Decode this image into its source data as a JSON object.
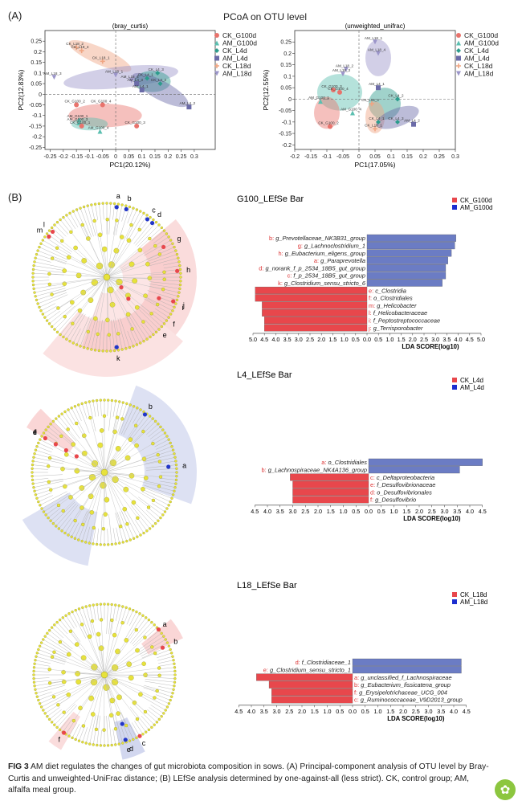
{
  "panel_a_label": "(A)",
  "panel_b_label": "(B)",
  "pcoa_title": "PCoA on OTU level",
  "colors": {
    "CK_G100d": "#e8736c",
    "AM_G100d": "#5bbfb0",
    "CK_L4d": "#2c9c8c",
    "AM_L4d": "#6b6ba8",
    "CK_L18d": "#f0a582",
    "AM_L18d": "#9b95c9",
    "red": "#e8474c",
    "blue": "#6b7cc4"
  },
  "chart_data": [
    {
      "type": "scatter",
      "title": "(bray_curtis)",
      "xlabel": "PC1(20.12%)",
      "ylabel": "PC2(12.83%)",
      "xlim": [
        -0.27,
        0.38
      ],
      "ylim": [
        -0.26,
        0.3
      ],
      "xticks": [
        "-0.25",
        "-0.2",
        "-0.15",
        "-0.1",
        "-0.05",
        "0",
        "0.05",
        "0.1",
        "0.15",
        "0.2",
        "0.25",
        "0.3"
      ],
      "yticks": [
        "0.25",
        "0.2",
        "0.15",
        "0.1",
        "0.05",
        "0",
        "-0.05",
        "-0.1",
        "-0.15",
        "-0.2",
        "-0.25"
      ],
      "legend": [
        "CK_G100d",
        "AM_G100d",
        "CK_L4d",
        "AM_L4d",
        "CK_L18d",
        "AM_L18d"
      ],
      "points": [
        {
          "label": "CK_L18_2",
          "x": -0.15,
          "y": 0.22,
          "group": "CK_L18d"
        },
        {
          "label": "CK_L18_4",
          "x": -0.13,
          "y": 0.205,
          "group": "CK_L18d"
        },
        {
          "label": "AM_L18_3",
          "x": -0.235,
          "y": 0.08,
          "group": "AM_L18d"
        },
        {
          "label": "AM_L18_1",
          "x": 0.0,
          "y": 0.09,
          "group": "AM_L18d"
        },
        {
          "label": "CK_L18_1",
          "x": -0.05,
          "y": 0.155,
          "group": "CK_L18d"
        },
        {
          "label": "AM_L18_4",
          "x": 0.06,
          "y": 0.065,
          "group": "AM_L18d"
        },
        {
          "label": "CK_L4_3",
          "x": 0.16,
          "y": 0.1,
          "group": "CK_L4d"
        },
        {
          "label": "CK_L4_1",
          "x": 0.12,
          "y": 0.075,
          "group": "CK_L4d"
        },
        {
          "label": "CK_L4_2",
          "x": 0.17,
          "y": 0.05,
          "group": "CK_L4d"
        },
        {
          "label": "AM_L4_3",
          "x": 0.08,
          "y": 0.05,
          "group": "AM_L4d"
        },
        {
          "label": "AM_L4_1",
          "x": 0.1,
          "y": 0.02,
          "group": "AM_L4d"
        },
        {
          "label": "AM_L4_2",
          "x": 0.28,
          "y": -0.06,
          "group": "AM_L4d"
        },
        {
          "label": "CK_G100_2",
          "x": -0.15,
          "y": -0.05,
          "group": "CK_G100d"
        },
        {
          "label": "CK_G100_4",
          "x": -0.05,
          "y": -0.05,
          "group": "CK_G100d"
        },
        {
          "label": "CK_G100_3",
          "x": 0.08,
          "y": -0.15,
          "group": "CK_G100d"
        },
        {
          "label": "AM_G100_1",
          "x": -0.14,
          "y": -0.12,
          "group": "AM_G100d"
        },
        {
          "label": "AM_G100_3",
          "x": -0.14,
          "y": -0.135,
          "group": "AM_G100d"
        },
        {
          "label": "AM_G100_4",
          "x": -0.06,
          "y": -0.175,
          "group": "AM_G100d"
        },
        {
          "label": "CK_G100_1",
          "x": -0.13,
          "y": -0.15,
          "group": "CK_G100d"
        }
      ]
    },
    {
      "type": "scatter",
      "title": "(unweighted_unifrac)",
      "xlabel": "PC1(17.05%)",
      "ylabel": "PC2(12.55%)",
      "xlim": [
        -0.2,
        0.3
      ],
      "ylim": [
        -0.22,
        0.3
      ],
      "xticks": [
        "-0.2",
        "-0.15",
        "-0.1",
        "-0.05",
        "0",
        "0.05",
        "0.1",
        "0.15",
        "0.2",
        "0.25",
        "0.3"
      ],
      "yticks": [
        "0.25",
        "0.2",
        "0.15",
        "0.1",
        "0.05",
        "0",
        "-0.05",
        "-0.1",
        "-0.15",
        "-0.2"
      ],
      "legend": [
        "CK_G100d",
        "AM_G100d",
        "CK_L4d",
        "AM_L4d",
        "CK_L18d",
        "AM_L18d"
      ],
      "points": [
        {
          "label": "AM_L18_1",
          "x": 0.05,
          "y": 0.25,
          "group": "AM_L18d"
        },
        {
          "label": "AM_L18_4",
          "x": 0.06,
          "y": 0.2,
          "group": "AM_L18d"
        },
        {
          "label": "AM_L18_2",
          "x": -0.04,
          "y": 0.13,
          "group": "AM_L18d"
        },
        {
          "label": "AM_L18_3",
          "x": -0.05,
          "y": 0.11,
          "group": "AM_L18d"
        },
        {
          "label": "AM_L4_1",
          "x": 0.06,
          "y": 0.05,
          "group": "AM_L4d"
        },
        {
          "label": "CK_G100_3",
          "x": -0.08,
          "y": 0.04,
          "group": "CK_G100d"
        },
        {
          "label": "CK_G100_4",
          "x": -0.06,
          "y": 0.03,
          "group": "CK_G100d"
        },
        {
          "label": "AM_G100_1",
          "x": -0.12,
          "y": -0.01,
          "group": "AM_G100d"
        },
        {
          "label": "CK_L4_2",
          "x": 0.12,
          "y": 0.0,
          "group": "CK_L4d"
        },
        {
          "label": "CK_L18_3",
          "x": 0.04,
          "y": -0.02,
          "group": "CK_L18d"
        },
        {
          "label": "AM_G100_4",
          "x": -0.02,
          "y": -0.06,
          "group": "AM_G100d"
        },
        {
          "label": "CK_L4_1",
          "x": 0.06,
          "y": -0.1,
          "group": "CK_L4d"
        },
        {
          "label": "CK_L4_3",
          "x": 0.12,
          "y": -0.1,
          "group": "CK_L4d"
        },
        {
          "label": "AM_L4_2",
          "x": 0.17,
          "y": -0.11,
          "group": "AM_L4d"
        },
        {
          "label": "CK_G100_2",
          "x": -0.09,
          "y": -0.12,
          "group": "CK_G100d"
        },
        {
          "label": "CK_L18_1",
          "x": 0.05,
          "y": -0.13,
          "group": "CK_L18d"
        }
      ]
    },
    {
      "type": "bar",
      "title": "G100_LEfSe Bar",
      "xlabel": "LDA SCORE(log10)",
      "legend": [
        "CK_G100d",
        "AM_G100d"
      ],
      "xticks": [
        "5.0",
        "4.5",
        "4.0",
        "3.5",
        "3.0",
        "2.5",
        "2.0",
        "1.5",
        "1.0",
        "0.5",
        "0.0",
        "0.5",
        "1.0",
        "1.5",
        "2.0",
        "2.5",
        "3.0",
        "3.5",
        "4.0",
        "4.5",
        "5.0"
      ],
      "bars": [
        {
          "label": "b: g_Prevotellaceae_NK3B31_group",
          "value": 3.9,
          "group": "AM_G100d"
        },
        {
          "label": "g: g_Lachnoclostridium_1",
          "value": 3.85,
          "group": "AM_G100d"
        },
        {
          "label": "h: g_Eubacterium_eligens_group",
          "value": 3.7,
          "group": "AM_G100d"
        },
        {
          "label": "a: g_Paraprevotella",
          "value": 3.55,
          "group": "AM_G100d"
        },
        {
          "label": "d: g_norank_f_p_2534_18B5_gut_group",
          "value": 3.45,
          "group": "AM_G100d"
        },
        {
          "label": "c: f_p_2534_18B5_gut_group",
          "value": 3.45,
          "group": "AM_G100d"
        },
        {
          "label": "k: g_Clostridium_sensu_stricto_6",
          "value": 3.3,
          "group": "AM_G100d"
        },
        {
          "label": "e: c_Clostridia",
          "value": 4.9,
          "group": "CK_G100d"
        },
        {
          "label": "f: o_Clostridiales",
          "value": 4.9,
          "group": "CK_G100d"
        },
        {
          "label": "m: g_Helicobacter",
          "value": 4.6,
          "group": "CK_G100d"
        },
        {
          "label": "l: f_Helicobacteraceae",
          "value": 4.6,
          "group": "CK_G100d"
        },
        {
          "label": "i: f_Peptostreptococcaceae",
          "value": 4.5,
          "group": "CK_G100d"
        },
        {
          "label": "j: g_Terrisporobacter",
          "value": 4.5,
          "group": "CK_G100d"
        }
      ]
    },
    {
      "type": "bar",
      "title": "L4_LEfSe Bar",
      "xlabel": "LDA SCORE(log10)",
      "legend": [
        "CK_L4d",
        "AM_L4d"
      ],
      "xticks": [
        "4.5",
        "4.0",
        "3.5",
        "3.0",
        "2.5",
        "2.0",
        "1.5",
        "1.0",
        "0.5",
        "0.0",
        "0.5",
        "1.0",
        "1.5",
        "2.0",
        "2.5",
        "3.0",
        "3.5",
        "4.0",
        "4.5"
      ],
      "bars": [
        {
          "label": "a: o_Clostridiales",
          "value": 4.5,
          "group": "AM_L4d"
        },
        {
          "label": "b: g_Lachnospiraceae_NK4A136_group",
          "value": 3.6,
          "group": "AM_L4d"
        },
        {
          "label": "c: c_Deltaproteobacteria",
          "value": 3.1,
          "group": "CK_L4d"
        },
        {
          "label": "e: f_Desulfovibrionaceae",
          "value": 3.0,
          "group": "CK_L4d"
        },
        {
          "label": "d: o_Desulfovibrionales",
          "value": 3.0,
          "group": "CK_L4d"
        },
        {
          "label": "f: g_Desulfovibrio",
          "value": 3.0,
          "group": "CK_L4d"
        }
      ]
    },
    {
      "type": "bar",
      "title": "L18_LEfSe Bar",
      "xlabel": "LDA SCORE(log10)",
      "legend": [
        "CK_L18d",
        "AM_L18d"
      ],
      "xticks": [
        "4.5",
        "4.0",
        "3.5",
        "3.0",
        "2.5",
        "2.0",
        "1.5",
        "1.0",
        "0.5",
        "0.0",
        "0.5",
        "1.0",
        "1.5",
        "2.0",
        "2.5",
        "3.0",
        "3.5",
        "4.0",
        "4.5"
      ],
      "bars": [
        {
          "label": "d: f_Clostridiaceae_1",
          "value": 4.3,
          "group": "AM_L18d"
        },
        {
          "label": "e: g_Clostridium_sensu_stricto_1",
          "value": 4.3,
          "group": "AM_L18d"
        },
        {
          "label": "a: g_unclassified_f_Lachnospiraceae",
          "value": 3.8,
          "group": "CK_L18d"
        },
        {
          "label": "b: g_Eubacterium_fissicatena_group",
          "value": 3.3,
          "group": "CK_L18d"
        },
        {
          "label": "f: g_Erysipelotrichaceae_UCG_004",
          "value": 3.2,
          "group": "CK_L18d"
        },
        {
          "label": "c: g_Ruminococcaceae_V9D2013_group",
          "value": 3.2,
          "group": "CK_L18d"
        }
      ]
    }
  ],
  "cladograms": [
    {
      "markers": [
        "a",
        "b",
        "c",
        "d",
        "g",
        "h",
        "i",
        "j",
        "e",
        "f",
        "k",
        "l",
        "m"
      ]
    },
    {
      "markers": [
        "a",
        "b",
        "c",
        "d",
        "e",
        "f"
      ]
    },
    {
      "markers": [
        "a",
        "b",
        "c",
        "d",
        "e",
        "f"
      ]
    }
  ],
  "caption": {
    "lead": "FIG 3",
    "text": "AM diet regulates the changes of gut microbiota composition in sows. (A) Principal-component analysis of OTU level by Bray-Curtis and unweighted-UniFrac distance; (B) LEfSe analysis determined by one-against-all (less strict). CK, control group; AM, alfalfa meal group."
  }
}
